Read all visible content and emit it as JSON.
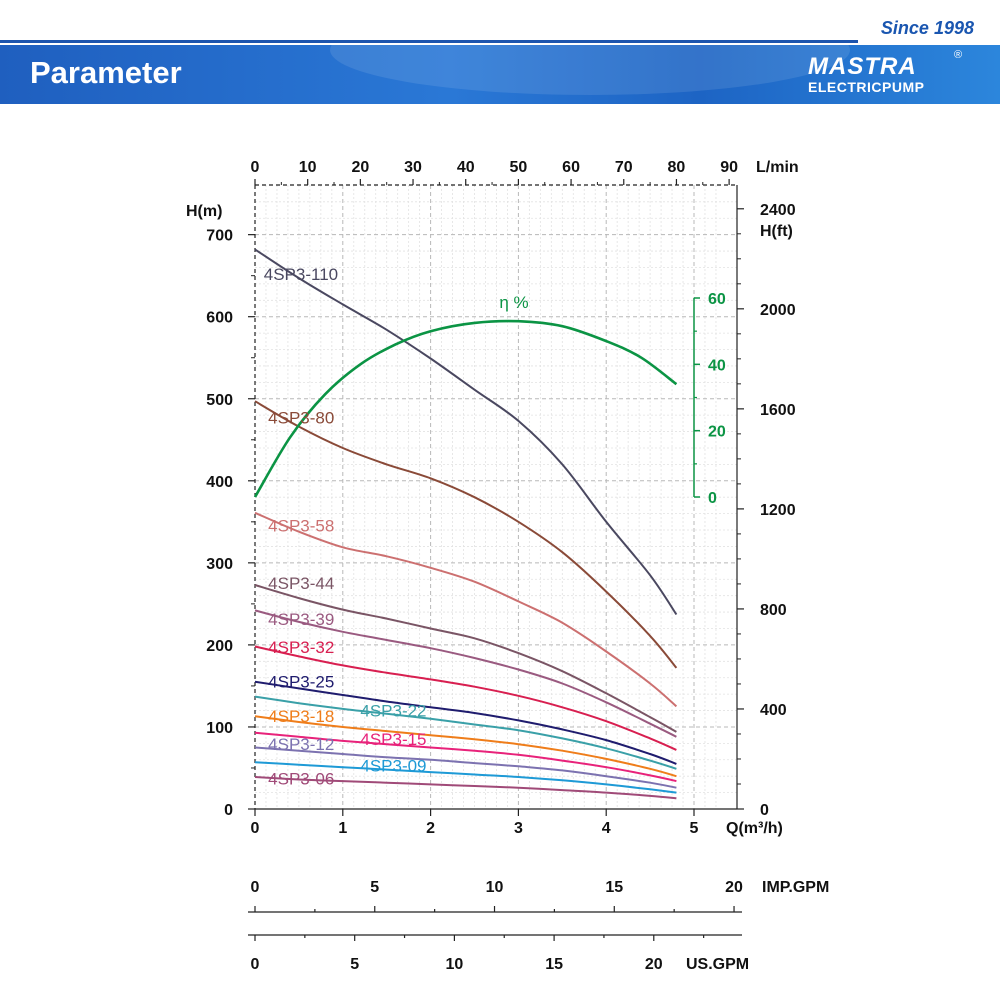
{
  "header": {
    "since": "Since 1998",
    "title": "Parameter",
    "logo_text": "MASTRA",
    "logo_sub": "ELECTRICPUMP",
    "logo_reg": "®"
  },
  "colors": {
    "brand_blue": "#1d55ae",
    "efficiency": "#0b9444"
  },
  "chart_data": {
    "type": "line",
    "x_axis": {
      "label": "Q(m³/h)",
      "ticks": [
        0,
        1,
        2,
        3,
        4,
        5
      ],
      "range": [
        0,
        5.3
      ]
    },
    "top_axis": {
      "label": "L/min",
      "ticks": [
        0,
        10,
        20,
        30,
        40,
        50,
        60,
        70,
        80,
        90
      ]
    },
    "y_left": {
      "label": "H(m)",
      "ticks": [
        0,
        100,
        200,
        300,
        400,
        500,
        600,
        700
      ],
      "range": [
        0,
        740
      ]
    },
    "y_right": {
      "label": "H(ft)",
      "ticks": [
        0,
        400,
        800,
        1200,
        1600,
        2000,
        2400
      ]
    },
    "efficiency_axis": {
      "label": "η %",
      "ticks": [
        0,
        20,
        40,
        60
      ]
    },
    "imp_gpm": {
      "label": "IMP.GPM",
      "ticks": [
        0,
        5,
        10,
        15,
        20
      ]
    },
    "us_gpm": {
      "label": "US.GPM",
      "ticks": [
        0,
        5,
        10,
        15,
        20
      ]
    },
    "grid": true,
    "series": [
      {
        "name": "4SP3-110",
        "color": "#4a4860",
        "points": [
          [
            0,
            682
          ],
          [
            0.5,
            647
          ],
          [
            1,
            615
          ],
          [
            1.5,
            584
          ],
          [
            2,
            549
          ],
          [
            2.5,
            511
          ],
          [
            3,
            473
          ],
          [
            3.5,
            420
          ],
          [
            4,
            350
          ],
          [
            4.5,
            285
          ],
          [
            4.8,
            237
          ]
        ],
        "label_pos": [
          0.1,
          645
        ]
      },
      {
        "name": "4SP3-80",
        "color": "#8a4a38",
        "points": [
          [
            0,
            497
          ],
          [
            0.5,
            466
          ],
          [
            1,
            440
          ],
          [
            1.5,
            420
          ],
          [
            2,
            403
          ],
          [
            2.5,
            380
          ],
          [
            3,
            350
          ],
          [
            3.5,
            313
          ],
          [
            4,
            265
          ],
          [
            4.5,
            211
          ],
          [
            4.8,
            172
          ]
        ],
        "label_pos": [
          0.15,
          470
        ]
      },
      {
        "name": "4SP3-58",
        "color": "#cc7070",
        "points": [
          [
            0,
            361
          ],
          [
            0.5,
            338
          ],
          [
            1,
            319
          ],
          [
            1.5,
            308
          ],
          [
            2,
            294
          ],
          [
            2.5,
            277
          ],
          [
            3,
            253
          ],
          [
            3.5,
            227
          ],
          [
            4,
            192
          ],
          [
            4.5,
            153
          ],
          [
            4.8,
            125
          ]
        ],
        "label_pos": [
          0.15,
          338
        ]
      },
      {
        "name": "4SP3-44",
        "color": "#7a5565",
        "points": [
          [
            0,
            273
          ],
          [
            0.5,
            257
          ],
          [
            1,
            243
          ],
          [
            1.5,
            232
          ],
          [
            2,
            220
          ],
          [
            2.5,
            208
          ],
          [
            3,
            190
          ],
          [
            3.5,
            168
          ],
          [
            4,
            141
          ],
          [
            4.5,
            112
          ],
          [
            4.8,
            94
          ]
        ],
        "label_pos": [
          0.15,
          268
        ]
      },
      {
        "name": "4SP3-39",
        "color": "#9a5a80",
        "points": [
          [
            0,
            242
          ],
          [
            0.5,
            228
          ],
          [
            1,
            216
          ],
          [
            1.5,
            206
          ],
          [
            2,
            196
          ],
          [
            2.5,
            184
          ],
          [
            3,
            170
          ],
          [
            3.5,
            153
          ],
          [
            4,
            130
          ],
          [
            4.5,
            104
          ],
          [
            4.8,
            88
          ]
        ],
        "label_pos": [
          0.15,
          224
        ]
      },
      {
        "name": "4SP3-32",
        "color": "#d81f50",
        "points": [
          [
            0,
            198
          ],
          [
            0.5,
            186
          ],
          [
            1,
            175
          ],
          [
            1.5,
            166
          ],
          [
            2,
            158
          ],
          [
            2.5,
            149
          ],
          [
            3,
            138
          ],
          [
            3.5,
            124
          ],
          [
            4,
            107
          ],
          [
            4.5,
            86
          ],
          [
            4.8,
            72
          ]
        ],
        "label_pos": [
          0.15,
          190
        ]
      },
      {
        "name": "4SP3-25",
        "color": "#1f1c6e",
        "points": [
          [
            0,
            155
          ],
          [
            0.5,
            147
          ],
          [
            1,
            139
          ],
          [
            1.5,
            131
          ],
          [
            2,
            124
          ],
          [
            2.5,
            117
          ],
          [
            3,
            108
          ],
          [
            3.5,
            97
          ],
          [
            4,
            84
          ],
          [
            4.5,
            67
          ],
          [
            4.8,
            55
          ]
        ],
        "label_pos": [
          0.15,
          148
        ]
      },
      {
        "name": "4SP3-22",
        "color": "#3aa0a8",
        "points": [
          [
            0,
            137
          ],
          [
            0.5,
            129
          ],
          [
            1,
            122
          ],
          [
            1.5,
            116
          ],
          [
            2,
            110
          ],
          [
            2.5,
            103
          ],
          [
            3,
            96
          ],
          [
            3.5,
            86
          ],
          [
            4,
            74
          ],
          [
            4.5,
            59
          ],
          [
            4.8,
            49
          ]
        ],
        "label_pos": [
          1.2,
          113
        ]
      },
      {
        "name": "4SP3-18",
        "color": "#ef7d1a",
        "points": [
          [
            0,
            113
          ],
          [
            0.5,
            106
          ],
          [
            1,
            100
          ],
          [
            1.5,
            95
          ],
          [
            2,
            90
          ],
          [
            2.5,
            85
          ],
          [
            3,
            79
          ],
          [
            3.5,
            71
          ],
          [
            4,
            61
          ],
          [
            4.5,
            49
          ],
          [
            4.8,
            40
          ]
        ],
        "label_pos": [
          0.15,
          106
        ]
      },
      {
        "name": "4SP3-15",
        "color": "#e8227a",
        "points": [
          [
            0,
            93
          ],
          [
            0.5,
            88
          ],
          [
            1,
            83
          ],
          [
            1.5,
            79
          ],
          [
            2,
            75
          ],
          [
            2.5,
            71
          ],
          [
            3,
            66
          ],
          [
            3.5,
            59
          ],
          [
            4,
            51
          ],
          [
            4.5,
            41
          ],
          [
            4.8,
            34
          ]
        ],
        "label_pos": [
          1.2,
          78
        ]
      },
      {
        "name": "4SP3-12",
        "color": "#7c72b0",
        "points": [
          [
            0,
            75
          ],
          [
            0.5,
            71
          ],
          [
            1,
            67
          ],
          [
            1.5,
            63
          ],
          [
            2,
            60
          ],
          [
            2.5,
            56
          ],
          [
            3,
            52
          ],
          [
            3.5,
            47
          ],
          [
            4,
            40
          ],
          [
            4.5,
            32
          ],
          [
            4.8,
            26
          ]
        ],
        "label_pos": [
          0.15,
          72
        ]
      },
      {
        "name": "4SP3-09",
        "color": "#1e9ad6",
        "points": [
          [
            0,
            57
          ],
          [
            0.5,
            54
          ],
          [
            1,
            51
          ],
          [
            1.5,
            48
          ],
          [
            2,
            45
          ],
          [
            2.5,
            42
          ],
          [
            3,
            39
          ],
          [
            3.5,
            35
          ],
          [
            4,
            30
          ],
          [
            4.5,
            24
          ],
          [
            4.8,
            20
          ]
        ],
        "label_pos": [
          1.2,
          46
        ]
      },
      {
        "name": "4SP3-06",
        "color": "#a04a78",
        "points": [
          [
            0,
            39
          ],
          [
            0.5,
            36
          ],
          [
            1,
            34
          ],
          [
            1.5,
            32
          ],
          [
            2,
            30
          ],
          [
            2.5,
            28
          ],
          [
            3,
            26
          ],
          [
            3.5,
            23
          ],
          [
            4,
            20
          ],
          [
            4.5,
            16
          ],
          [
            4.8,
            13
          ]
        ],
        "label_pos": [
          0.15,
          30
        ]
      },
      {
        "name": "η %",
        "axis": "efficiency",
        "color": "#0b9444",
        "points": [
          [
            0,
            0
          ],
          [
            0.4,
            18
          ],
          [
            0.8,
            31
          ],
          [
            1.2,
            40
          ],
          [
            1.6,
            46
          ],
          [
            2,
            50
          ],
          [
            2.5,
            52.5
          ],
          [
            3,
            53
          ],
          [
            3.5,
            51.5
          ],
          [
            4,
            47
          ],
          [
            4.4,
            42
          ],
          [
            4.8,
            34
          ]
        ],
        "label_pos": [
          2.95,
          57
        ]
      }
    ]
  }
}
